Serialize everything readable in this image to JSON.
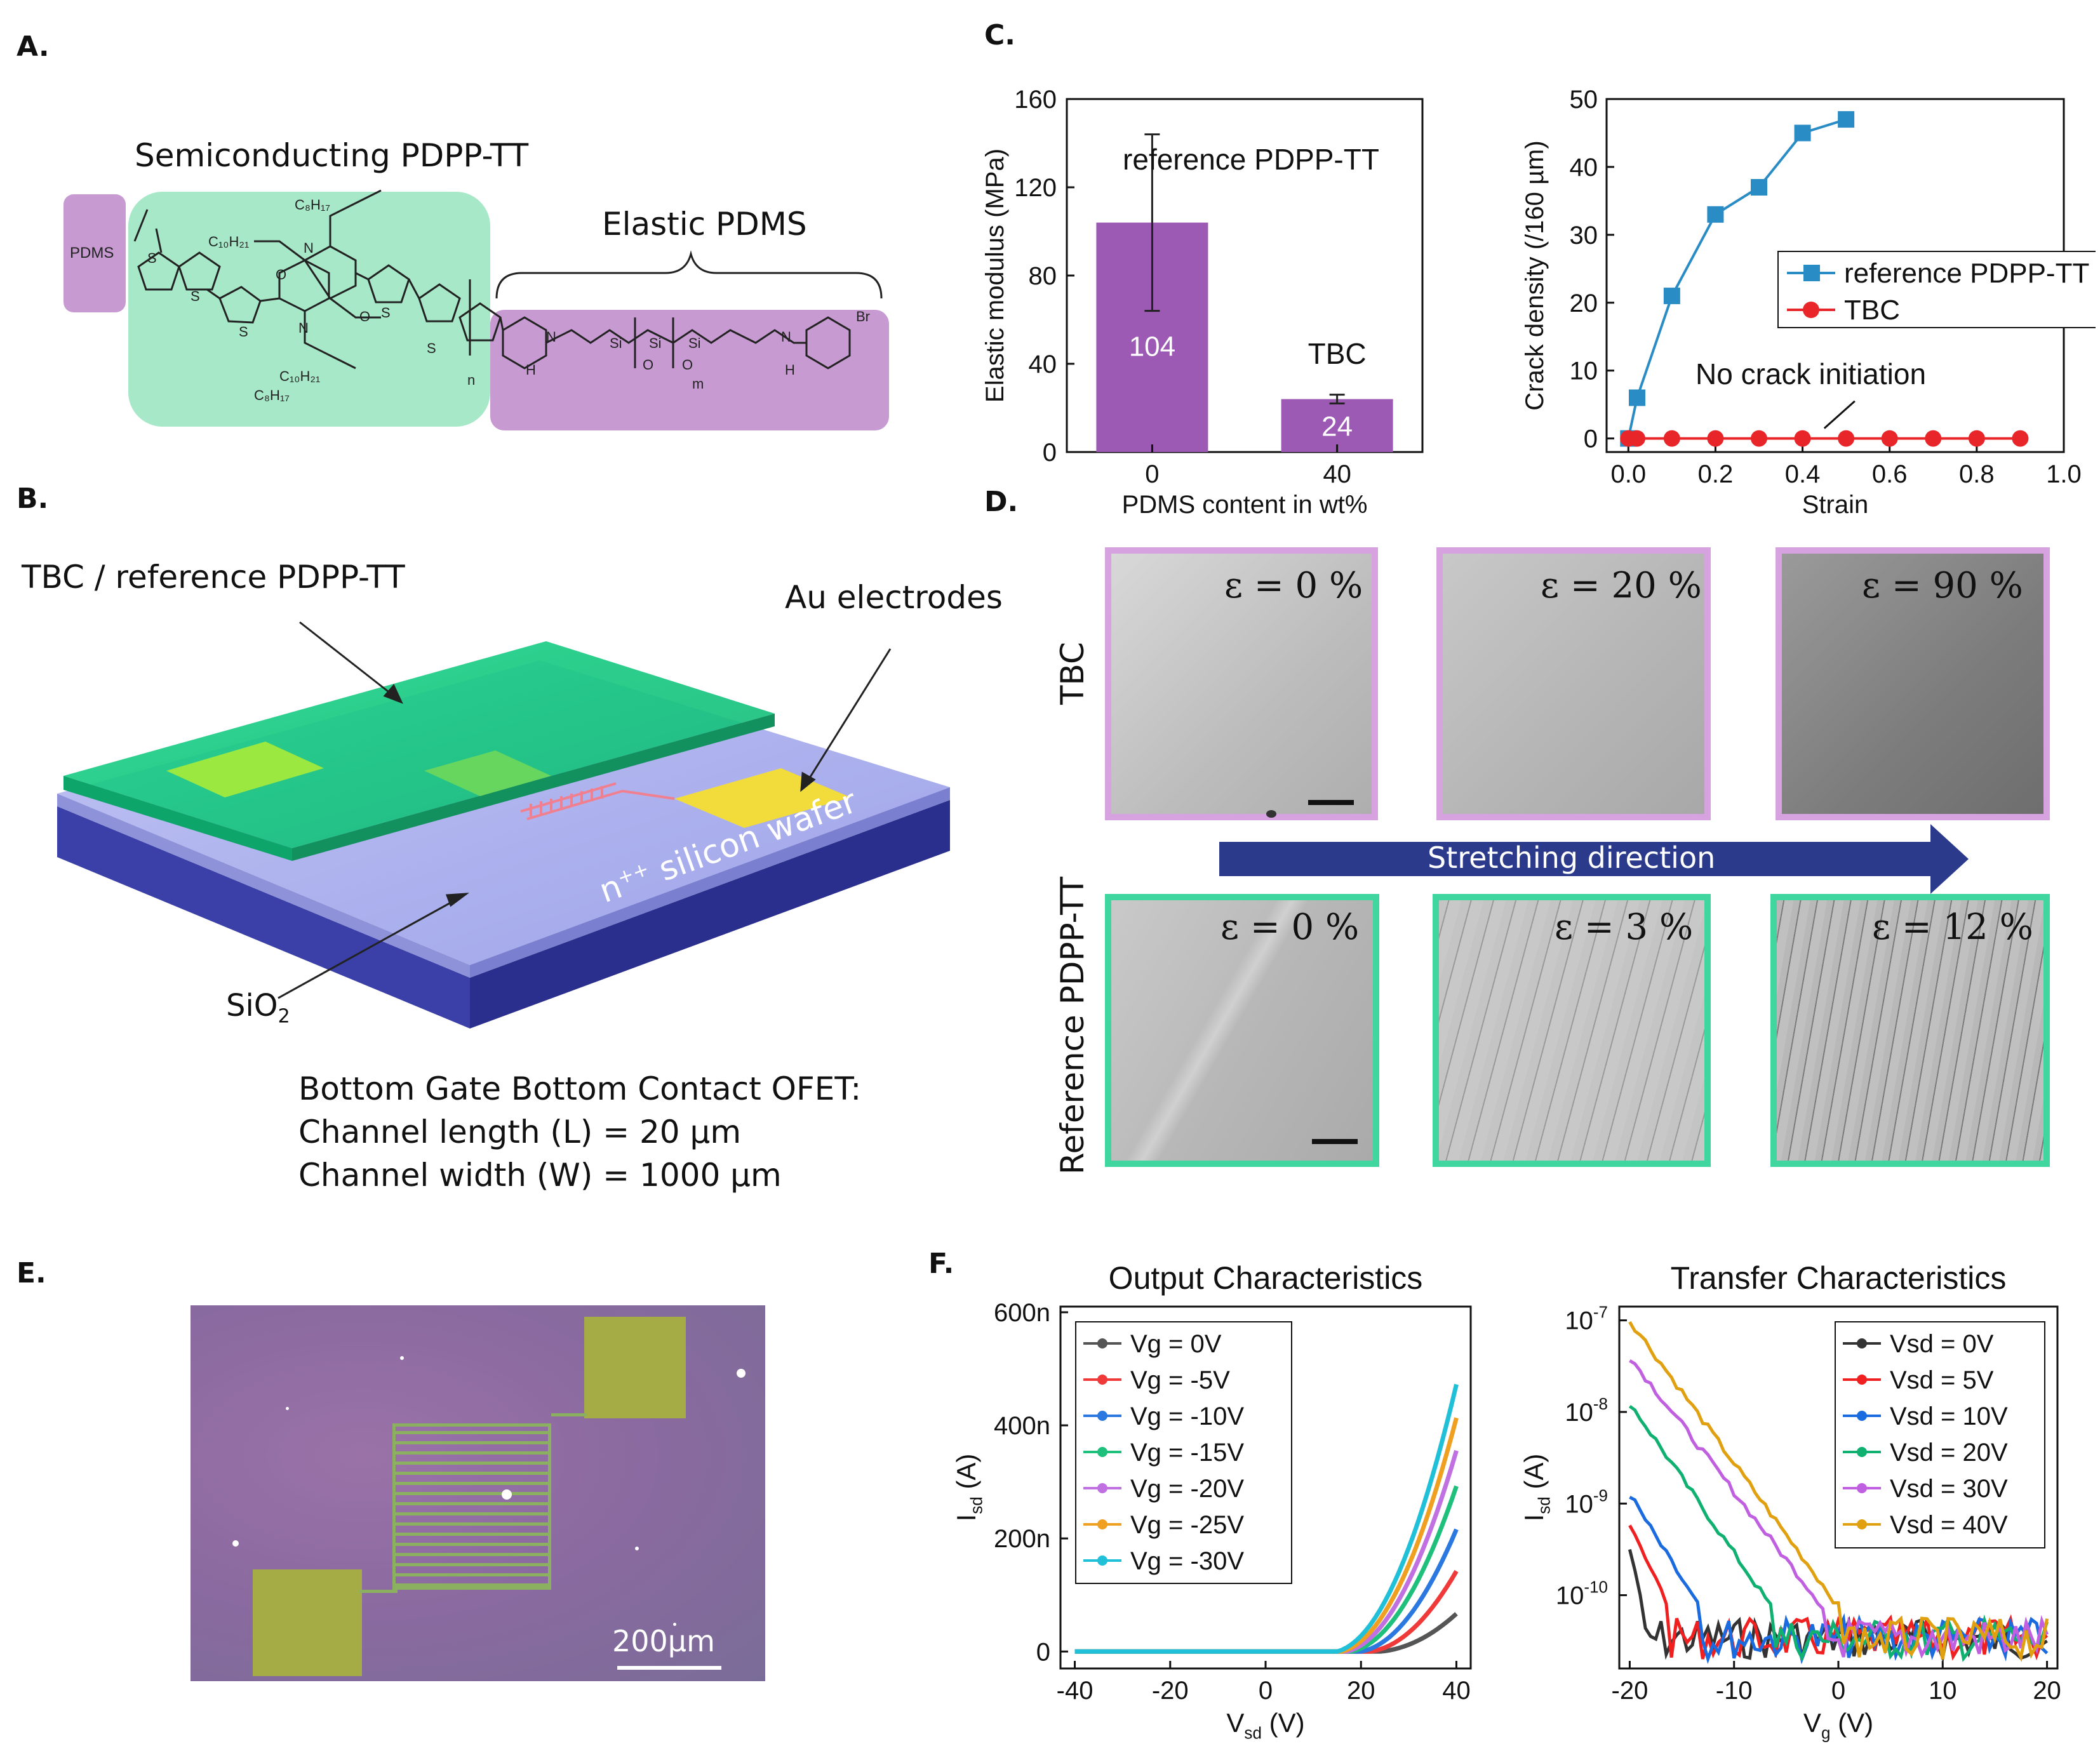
{
  "panels": {
    "a": "A.",
    "b": "B.",
    "c": "C.",
    "d": "D.",
    "e": "E.",
    "f": "F."
  },
  "panelA": {
    "label_semiconducting": "Semiconducting PDPP-TT",
    "label_elastic": "Elastic PDMS",
    "pdms_box": "PDMS",
    "atoms": [
      "S",
      "S",
      "S",
      "S",
      "S",
      "N",
      "N",
      "N",
      "N",
      "O",
      "O",
      "O",
      "O",
      "H",
      "H",
      "Si",
      "Si",
      "Si",
      "Br",
      "n",
      "m"
    ],
    "alkyl": [
      "C₈H₁₇",
      "C₁₀H₂₁",
      "C₁₀H₂₁",
      "C₈H₁₇"
    ],
    "colors": {
      "semi": "#a7e8c8",
      "elastic": "#c79ad2"
    }
  },
  "panelB": {
    "label_tbc": "TBC / reference PDPP-TT",
    "label_au": "Au electrodes",
    "label_sio2": "SiO",
    "label_sio2_sub": "2",
    "label_wafer": "n",
    "label_wafer_sup": "++",
    "label_wafer_rest": " silicon wafer",
    "spec_line1": "Bottom Gate Bottom Contact OFET:",
    "spec_line2": "Channel length (L) = 20 µm",
    "spec_line3": "Channel width (W) = 1000 µm"
  },
  "panelD": {
    "row1_label": "TBC",
    "row2_label": "Reference PDPP-TT",
    "arrow_label": "Stretching direction",
    "row1": [
      "ε = 0 %",
      "ε = 20 %",
      "ε = 90 %"
    ],
    "row2": [
      "ε = 0 %",
      "ε = 3 %",
      "ε = 12 %"
    ],
    "colors": {
      "row1_border": "#d6a3e0",
      "row2_border": "#3fd6a0",
      "arrow": "#2c3a8c"
    }
  },
  "panelE": {
    "scale": "200µm"
  },
  "chart_data": [
    {
      "id": "C1",
      "type": "bar",
      "categories": [
        "0",
        "40"
      ],
      "values": [
        104,
        24
      ],
      "error": [
        40,
        2
      ],
      "value_labels": [
        "104",
        "24"
      ],
      "bar_labels": [
        "reference PDPP-TT",
        "TBC"
      ],
      "xlabel": "PDMS content in wt%",
      "ylabel": "Elastic modulus (MPa)",
      "ylim": [
        0,
        160
      ],
      "yticks": [
        "0",
        "40",
        "80",
        "120",
        "160"
      ],
      "bar_color": "#9c5ab4"
    },
    {
      "id": "C2",
      "type": "line",
      "xlabel": "Strain",
      "ylabel": "Crack density (/160 µm)",
      "xlim": [
        -0.05,
        1.0
      ],
      "ylim": [
        -2,
        50
      ],
      "xticks": [
        "0.0",
        "0.2",
        "0.4",
        "0.6",
        "0.8",
        "1.0"
      ],
      "yticks": [
        "0",
        "10",
        "20",
        "30",
        "40",
        "50"
      ],
      "annotation": "No crack initiation",
      "series": [
        {
          "name": "reference PDPP-TT",
          "color": "#2a8cc4",
          "marker": "square",
          "x": [
            0,
            0.02,
            0.1,
            0.2,
            0.3,
            0.4,
            0.5
          ],
          "y": [
            0,
            6,
            21,
            33,
            37,
            45,
            47
          ]
        },
        {
          "name": "TBC",
          "color": "#e8262a",
          "marker": "circle",
          "x": [
            0,
            0.02,
            0.1,
            0.2,
            0.3,
            0.4,
            0.5,
            0.6,
            0.7,
            0.8,
            0.9
          ],
          "y": [
            0,
            0,
            0,
            0,
            0,
            0,
            0,
            0,
            0,
            0,
            0
          ]
        }
      ]
    },
    {
      "id": "F1",
      "type": "line",
      "title": "Output Characteristics",
      "xlabel": "V",
      "xlabel_sub": "sd",
      "xlabel_rest": " (V)",
      "ylabel": "I",
      "ylabel_sub": "sd",
      "ylabel_rest": " (A)",
      "xlim": [
        -43,
        43
      ],
      "ylim": [
        -30,
        610
      ],
      "xticks": [
        "-40",
        "-20",
        "0",
        "20",
        "40"
      ],
      "yticks": [
        "0",
        "200n",
        "400n",
        "600n"
      ],
      "series": [
        {
          "name": "Vg = 0V",
          "color": "#555555",
          "vth": 24,
          "k": 0.35
        },
        {
          "name": "Vg = -5V",
          "color": "#f03a3a",
          "vth": 22,
          "k": 0.6
        },
        {
          "name": "Vg = -10V",
          "color": "#2a78e0",
          "vth": 20,
          "k": 0.75
        },
        {
          "name": "Vg = -15V",
          "color": "#1ec07c",
          "vth": 18,
          "k": 0.85
        },
        {
          "name": "Vg = -20V",
          "color": "#c070e0",
          "vth": 17,
          "k": 0.95
        },
        {
          "name": "Vg = -25V",
          "color": "#f0a020",
          "vth": 16,
          "k": 1.02
        },
        {
          "name": "Vg = -30V",
          "color": "#20c0d8",
          "vth": 15,
          "k": 1.08
        }
      ]
    },
    {
      "id": "F2",
      "type": "line",
      "title": "Transfer Characteristics",
      "xlabel": "V",
      "xlabel_sub": "g",
      "xlabel_rest": " (V)",
      "ylabel": "I",
      "ylabel_sub": "sd",
      "ylabel_rest": " (A)",
      "xlim": [
        -21,
        21
      ],
      "ylim_log": [
        -10.8,
        -6.85
      ],
      "xticks": [
        "-20",
        "-10",
        "0",
        "10",
        "20"
      ],
      "yticks": [
        "10",
        "10",
        "10",
        "10"
      ],
      "ytick_exp": [
        "-10",
        "-9",
        "-8",
        "-7"
      ],
      "series": [
        {
          "name": "Vsd = 0V",
          "color": "#333333",
          "start": -9.5,
          "cut": -18.5
        },
        {
          "name": "Vsd = 5V",
          "color": "#f02020",
          "start": -9.2,
          "cut": -16
        },
        {
          "name": "Vsd = 10V",
          "color": "#1a6ae0",
          "start": -8.9,
          "cut": -13
        },
        {
          "name": "Vsd = 20V",
          "color": "#10b070",
          "start": -7.9,
          "cut": -6
        },
        {
          "name": "Vsd = 30V",
          "color": "#c060e0",
          "start": -7.4,
          "cut": -1
        },
        {
          "name": "Vsd = 40V",
          "color": "#e0a010",
          "start": -7.0,
          "cut": 0.5
        }
      ]
    }
  ]
}
